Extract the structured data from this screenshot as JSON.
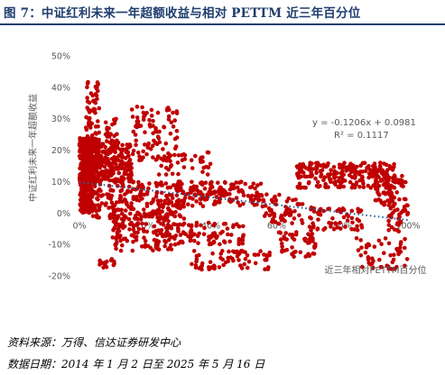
{
  "title": "图 7：中证红利未来一年超额收益与相对 PETTM 近三年百分位",
  "footer": {
    "source": "资料来源：万得、信达证券研发中心",
    "date": "数据日期：2014 年 1 月 2 日至 2025 年 5 月 16 日"
  },
  "chart_data": {
    "type": "scatter",
    "xlabel": "近三年相对PETTM百分位",
    "ylabel": "中证红利未来一年超额收益",
    "xlim": [
      0,
      1
    ],
    "ylim": [
      -0.2,
      0.5
    ],
    "x_ticks": [
      "0%",
      "20%",
      "40%",
      "60%",
      "80%",
      "100%"
    ],
    "y_ticks": [
      "50%",
      "40%",
      "30%",
      "20%",
      "10%",
      "0%",
      "-10%",
      "-20%"
    ],
    "grid": false,
    "point_color": "#c00000",
    "trendline": {
      "slope": -0.1206,
      "intercept": 0.0981,
      "color": "#1f5f9e",
      "equation": "y = -0.1206x + 0.0981",
      "r2": "R² = 0.1117"
    },
    "clusters": [
      {
        "x": [
          0.0,
          0.06
        ],
        "y": [
          0.1,
          0.24
        ],
        "n": 380
      },
      {
        "x": [
          0.0,
          0.04
        ],
        "y": [
          0.0,
          0.1
        ],
        "n": 150
      },
      {
        "x": [
          0.02,
          0.06
        ],
        "y": [
          0.24,
          0.42
        ],
        "n": 50
      },
      {
        "x": [
          0.06,
          0.16
        ],
        "y": [
          0.1,
          0.22
        ],
        "n": 180
      },
      {
        "x": [
          0.08,
          0.12
        ],
        "y": [
          0.22,
          0.3
        ],
        "n": 25
      },
      {
        "x": [
          0.16,
          0.3
        ],
        "y": [
          0.16,
          0.34
        ],
        "n": 90
      },
      {
        "x": [
          0.04,
          0.32
        ],
        "y": [
          -0.02,
          0.1
        ],
        "n": 230
      },
      {
        "x": [
          0.1,
          0.3
        ],
        "y": [
          -0.12,
          0.0
        ],
        "n": 140
      },
      {
        "x": [
          0.06,
          0.12
        ],
        "y": [
          -0.18,
          -0.14
        ],
        "n": 15
      },
      {
        "x": [
          0.24,
          0.4
        ],
        "y": [
          0.12,
          0.2
        ],
        "n": 40
      },
      {
        "x": [
          0.3,
          0.56
        ],
        "y": [
          0.02,
          0.1
        ],
        "n": 150
      },
      {
        "x": [
          0.3,
          0.5
        ],
        "y": [
          -0.1,
          -0.03
        ],
        "n": 80
      },
      {
        "x": [
          0.34,
          0.58
        ],
        "y": [
          -0.18,
          -0.12
        ],
        "n": 70
      },
      {
        "x": [
          0.56,
          0.68
        ],
        "y": [
          -0.04,
          0.06
        ],
        "n": 60
      },
      {
        "x": [
          0.6,
          0.72
        ],
        "y": [
          -0.14,
          -0.06
        ],
        "n": 50
      },
      {
        "x": [
          0.66,
          0.96
        ],
        "y": [
          0.08,
          0.16
        ],
        "n": 220
      },
      {
        "x": [
          0.7,
          0.86
        ],
        "y": [
          -0.06,
          0.02
        ],
        "n": 60
      },
      {
        "x": [
          0.9,
          1.0
        ],
        "y": [
          0.02,
          0.12
        ],
        "n": 80
      },
      {
        "x": [
          0.94,
          1.0
        ],
        "y": [
          -0.06,
          0.02
        ],
        "n": 30
      },
      {
        "x": [
          0.84,
          1.0
        ],
        "y": [
          -0.18,
          -0.08
        ],
        "n": 50
      }
    ]
  }
}
